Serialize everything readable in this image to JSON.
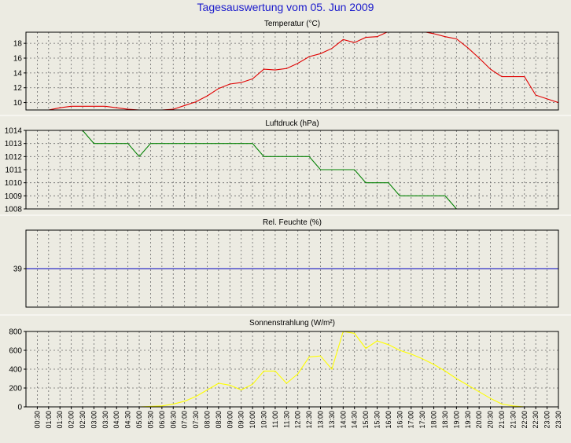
{
  "page": {
    "title": "Tagesauswertung vom 05. Jun 2009"
  },
  "chart_data": [
    {
      "type": "line",
      "title": "Temperatur (°C)",
      "ylim": [
        9,
        19.5
      ],
      "yticks": [
        10,
        12,
        14,
        16,
        18
      ],
      "grid": true,
      "series": [
        {
          "color": "#e00000",
          "points": [
            [
              0.5,
              9
            ],
            [
              1,
              9
            ],
            [
              1.5,
              9.3
            ],
            [
              2,
              9.5
            ],
            [
              2.5,
              9.5
            ],
            [
              3,
              9.5
            ],
            [
              3.5,
              9.5
            ],
            [
              4,
              9.3
            ],
            [
              4.5,
              9.1
            ],
            [
              5,
              9
            ],
            [
              5.5,
              9
            ],
            [
              6,
              9
            ],
            [
              6.5,
              9.1
            ],
            [
              7,
              9.6
            ],
            [
              7.5,
              10.1
            ],
            [
              8,
              10.9
            ],
            [
              8.5,
              11.9
            ],
            [
              9,
              12.5
            ],
            [
              9.5,
              12.7
            ],
            [
              10,
              13.2
            ],
            [
              10.5,
              14.5
            ],
            [
              11,
              14.4
            ],
            [
              11.5,
              14.6
            ],
            [
              12,
              15.3
            ],
            [
              12.5,
              16.2
            ],
            [
              13,
              16.6
            ],
            [
              13.5,
              17.3
            ],
            [
              14,
              18.5
            ],
            [
              14.5,
              18.1
            ],
            [
              15,
              18.8
            ],
            [
              15.5,
              18.9
            ],
            [
              16,
              19.6
            ],
            [
              16.5,
              19.6
            ],
            [
              17,
              19.5
            ],
            [
              17.5,
              19.6
            ],
            [
              18,
              19.3
            ],
            [
              18.5,
              18.9
            ],
            [
              19,
              18.6
            ],
            [
              19.5,
              17.4
            ],
            [
              20,
              16
            ],
            [
              20.5,
              14.5
            ],
            [
              21,
              13.5
            ],
            [
              21.5,
              13.5
            ],
            [
              22,
              13.5
            ],
            [
              22.5,
              11
            ],
            [
              23,
              10.5
            ],
            [
              23.5,
              10
            ]
          ]
        }
      ]
    },
    {
      "type": "line",
      "title": "Luftdruck (hPa)",
      "ylim": [
        1008,
        1014
      ],
      "yticks": [
        1008,
        1009,
        1010,
        1011,
        1012,
        1013,
        1014
      ],
      "grid": true,
      "series": [
        {
          "color": "#008000",
          "points": [
            [
              2.5,
              1014
            ],
            [
              3,
              1013
            ],
            [
              3.5,
              1013
            ],
            [
              4,
              1013
            ],
            [
              4.5,
              1013
            ],
            [
              5,
              1012
            ],
            [
              5.5,
              1013
            ],
            [
              6,
              1013
            ],
            [
              6.5,
              1013
            ],
            [
              7,
              1013
            ],
            [
              7.5,
              1013
            ],
            [
              8,
              1013
            ],
            [
              8.5,
              1013
            ],
            [
              9,
              1013
            ],
            [
              9.5,
              1013
            ],
            [
              10,
              1013
            ],
            [
              10.5,
              1012
            ],
            [
              11,
              1012
            ],
            [
              11.5,
              1012
            ],
            [
              12,
              1012
            ],
            [
              12.5,
              1012
            ],
            [
              13,
              1011
            ],
            [
              13.5,
              1011
            ],
            [
              14,
              1011
            ],
            [
              14.5,
              1011
            ],
            [
              15,
              1010
            ],
            [
              15.5,
              1010
            ],
            [
              16,
              1010
            ],
            [
              16.5,
              1009
            ],
            [
              17,
              1009
            ],
            [
              17.5,
              1009
            ],
            [
              18,
              1009
            ],
            [
              18.5,
              1009
            ],
            [
              19,
              1008
            ]
          ]
        }
      ]
    },
    {
      "type": "line",
      "title": "Rel. Feuchte (%)",
      "ylim": [
        0,
        78
      ],
      "yticks": [
        39
      ],
      "grid": true,
      "series": [
        {
          "color": "#0000c0",
          "points": [
            [
              0,
              39
            ],
            [
              23.5,
              39
            ]
          ]
        }
      ]
    },
    {
      "type": "area",
      "title": "Sonnenstrahlung (W/m²)",
      "ylim": [
        0,
        800
      ],
      "yticks": [
        0,
        200,
        400,
        600,
        800
      ],
      "grid": true,
      "series": [
        {
          "color": "#ffff00",
          "points": [
            [
              5,
              0
            ],
            [
              5.5,
              5
            ],
            [
              6,
              10
            ],
            [
              6.5,
              30
            ],
            [
              7,
              60
            ],
            [
              7.5,
              110
            ],
            [
              8,
              180
            ],
            [
              8.5,
              250
            ],
            [
              9,
              230
            ],
            [
              9.5,
              180
            ],
            [
              10,
              240
            ],
            [
              10.5,
              380
            ],
            [
              11,
              380
            ],
            [
              11.5,
              250
            ],
            [
              12,
              350
            ],
            [
              12.5,
              530
            ],
            [
              13,
              540
            ],
            [
              13.5,
              400
            ],
            [
              14,
              800
            ],
            [
              14.5,
              780
            ],
            [
              15,
              620
            ],
            [
              15.5,
              700
            ],
            [
              16,
              660
            ],
            [
              16.5,
              600
            ],
            [
              17,
              560
            ],
            [
              17.5,
              510
            ],
            [
              18,
              450
            ],
            [
              18.5,
              380
            ],
            [
              19,
              300
            ],
            [
              19.5,
              230
            ],
            [
              20,
              160
            ],
            [
              20.5,
              90
            ],
            [
              21,
              30
            ],
            [
              21.5,
              10
            ],
            [
              22,
              0
            ]
          ]
        }
      ]
    }
  ],
  "x_axis": {
    "ticks": [
      "00:30",
      "01:00",
      "01:30",
      "02:00",
      "02:30",
      "03:00",
      "03:30",
      "04:00",
      "04:30",
      "05:00",
      "05:30",
      "06:00",
      "06:30",
      "07:00",
      "07:30",
      "08:00",
      "08:30",
      "09:00",
      "09:30",
      "10:00",
      "10:30",
      "11:00",
      "11:30",
      "12:00",
      "12:30",
      "13:00",
      "13:30",
      "14:00",
      "14:30",
      "15:00",
      "15:30",
      "16:00",
      "16:30",
      "17:00",
      "17:30",
      "18:00",
      "18:30",
      "19:00",
      "19:30",
      "20:00",
      "20:30",
      "21:00",
      "21:30",
      "22:00",
      "22:30",
      "23:00",
      "23:30"
    ]
  }
}
